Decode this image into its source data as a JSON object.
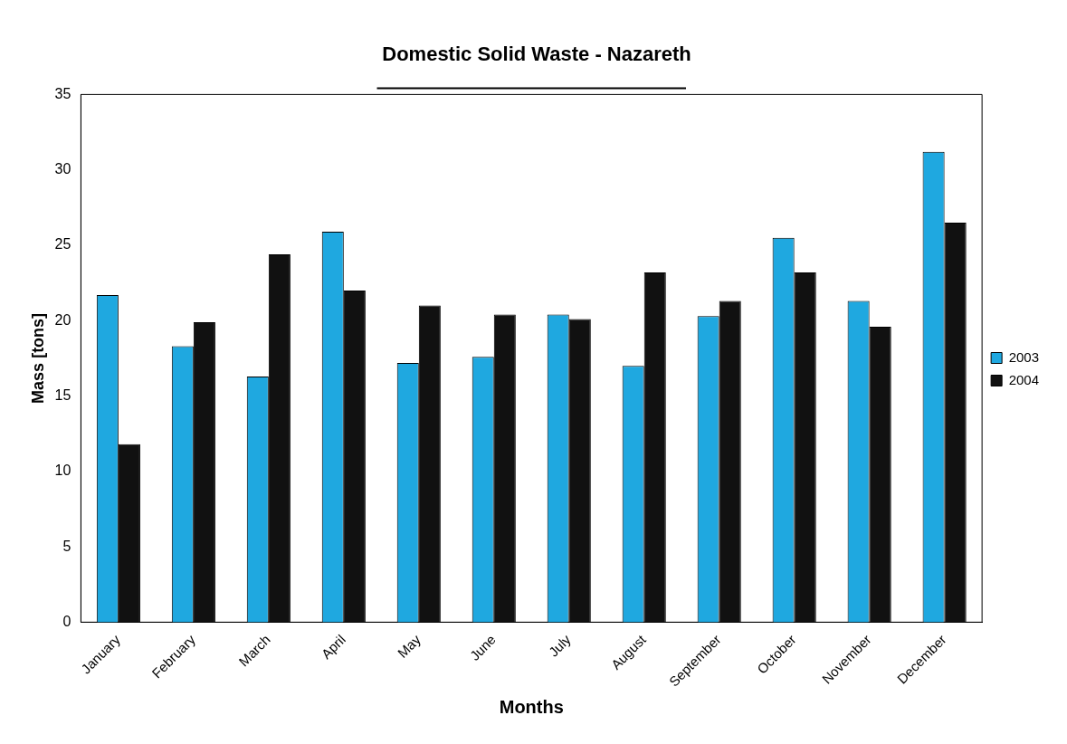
{
  "chart_data": {
    "type": "bar",
    "title": "Domestic Solid Waste - Nazareth",
    "xlabel": "Months",
    "ylabel": "Mass [tons]",
    "categories": [
      "January",
      "February",
      "March",
      "April",
      "May",
      "June",
      "July",
      "August",
      "September",
      "October",
      "November",
      "December"
    ],
    "series": [
      {
        "name": "2003",
        "color": "#1fa8e0",
        "values": [
          21.7,
          18.3,
          16.3,
          25.9,
          17.2,
          17.6,
          20.4,
          17.0,
          20.3,
          25.5,
          21.3,
          31.2
        ]
      },
      {
        "name": "2004",
        "color": "#111111",
        "values": [
          11.8,
          19.9,
          24.4,
          22.0,
          21.0,
          20.4,
          20.1,
          23.2,
          21.3,
          23.2,
          19.6,
          26.5
        ]
      }
    ],
    "ylim": [
      0,
      35
    ],
    "yticks": [
      0,
      5,
      10,
      15,
      20,
      25,
      30,
      35
    ],
    "grid": false,
    "legend": "right"
  }
}
